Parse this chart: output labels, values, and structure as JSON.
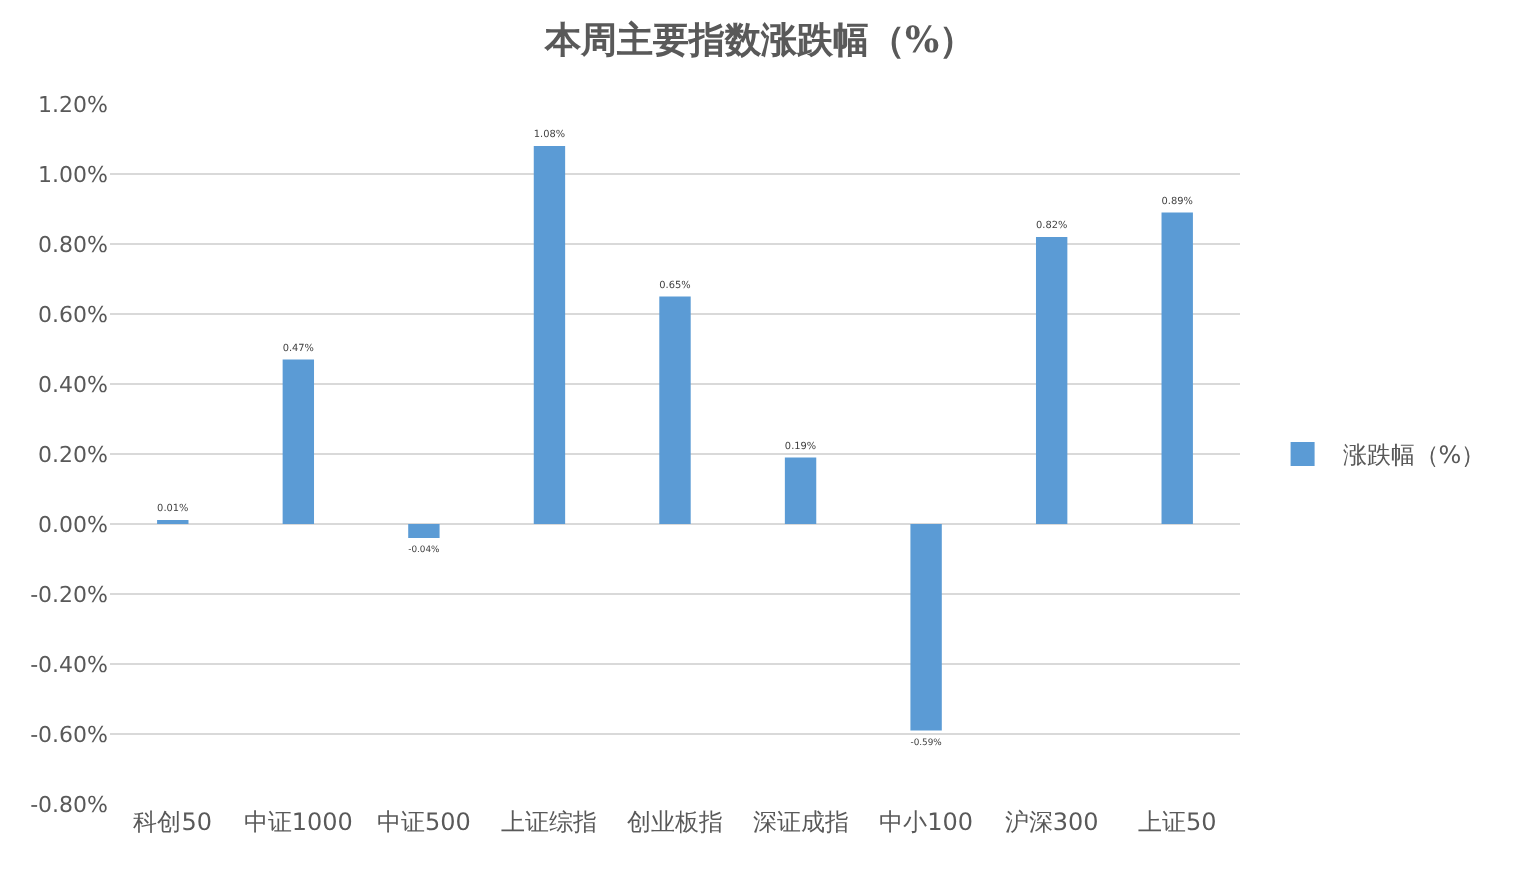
{
  "chart_data": {
    "type": "bar",
    "title": "本周主要指数涨跌幅（%）",
    "categories": [
      "科创50",
      "中证1000",
      "中证500",
      "上证综指",
      "创业板指",
      "深证成指",
      "中小100",
      "沪深300",
      "上证50"
    ],
    "series": [
      {
        "name": "涨跌幅（%）",
        "color": "#5b9bd5",
        "values": [
          0.01,
          0.47,
          -0.04,
          1.08,
          0.65,
          0.19,
          -0.59,
          0.82,
          0.89
        ],
        "value_labels": [
          "0.01%",
          "0.47%",
          "-0.04%",
          "1.08%",
          "0.65%",
          "0.19%",
          "-0.59%",
          "0.82%",
          "0.89%"
        ]
      }
    ],
    "ylim": [
      -0.8,
      1.2
    ],
    "yticks": [
      {
        "value": -0.8,
        "label": "-0.80%"
      },
      {
        "value": -0.6,
        "label": "-0.60%"
      },
      {
        "value": -0.4,
        "label": "-0.40%"
      },
      {
        "value": -0.2,
        "label": "-0.20%"
      },
      {
        "value": 0,
        "label": "0.00%"
      },
      {
        "value": 0.2,
        "label": "0.20%"
      },
      {
        "value": 0.4,
        "label": "0.40%"
      },
      {
        "value": 0.6,
        "label": "0.60%"
      },
      {
        "value": 0.8,
        "label": "0.80%"
      },
      {
        "value": 1.0,
        "label": "1.00%"
      },
      {
        "value": 1.2,
        "label": "1.20%"
      }
    ],
    "grid": "y",
    "legend": "right"
  }
}
